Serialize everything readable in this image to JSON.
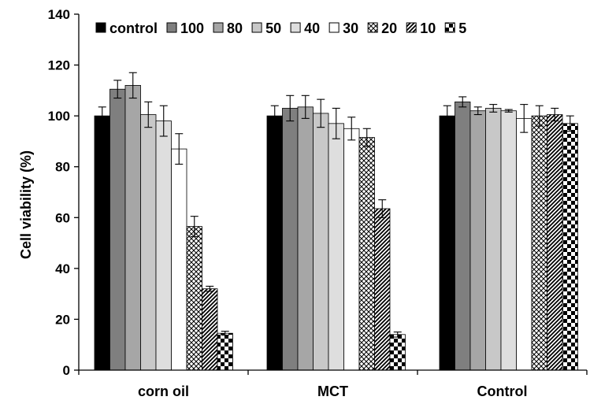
{
  "chart_data": {
    "type": "bar",
    "title": "",
    "xlabel": "",
    "ylabel": "Cell viability (%)",
    "ylim": [
      0,
      140
    ],
    "yticks": [
      0,
      20,
      40,
      60,
      80,
      100,
      120,
      140
    ],
    "grid": false,
    "legend_position": "top",
    "categories": [
      "corn oil",
      "MCT",
      "Control"
    ],
    "series": [
      {
        "name": "control",
        "pattern": "solid-black",
        "values": [
          100,
          100,
          100
        ],
        "errors": [
          3.5,
          4,
          4
        ]
      },
      {
        "name": "100",
        "pattern": "solid-dark-gray",
        "values": [
          110.5,
          103,
          105.5
        ],
        "errors": [
          3.5,
          5,
          2
        ]
      },
      {
        "name": "80",
        "pattern": "solid-gray",
        "values": [
          112,
          103.5,
          102
        ],
        "errors": [
          5,
          4.5,
          1.5
        ]
      },
      {
        "name": "50",
        "pattern": "solid-light-gray",
        "values": [
          100.5,
          101,
          103
        ],
        "errors": [
          5,
          5.5,
          1.5
        ]
      },
      {
        "name": "40",
        "pattern": "solid-lighter-gray",
        "values": [
          98,
          97,
          102
        ],
        "errors": [
          6,
          6,
          0.5
        ]
      },
      {
        "name": "30",
        "pattern": "solid-white",
        "values": [
          87,
          95,
          99
        ],
        "errors": [
          6,
          4.5,
          5.5
        ]
      },
      {
        "name": "20",
        "pattern": "crosshatch",
        "values": [
          56.5,
          91.5,
          100
        ],
        "errors": [
          4,
          3.5,
          4
        ]
      },
      {
        "name": "10",
        "pattern": "diagonal",
        "values": [
          32,
          63.5,
          100.5
        ],
        "errors": [
          1,
          3.5,
          2.5
        ]
      },
      {
        "name": "5",
        "pattern": "checker",
        "values": [
          14.5,
          14,
          97
        ],
        "errors": [
          0.8,
          1,
          3
        ]
      }
    ]
  }
}
